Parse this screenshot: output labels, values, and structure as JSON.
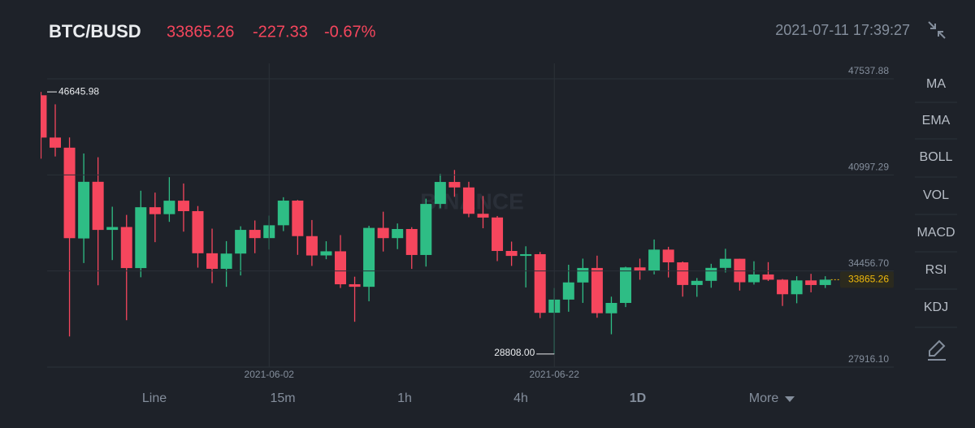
{
  "header": {
    "symbol": "BTC/BUSD",
    "price": "33865.26",
    "change": "-227.33",
    "change_percent": "-0.67%",
    "time": "2021-07-11 17:39:27"
  },
  "indicators": [
    "MA",
    "EMA",
    "BOLL",
    "VOL",
    "MACD",
    "RSI",
    "KDJ"
  ],
  "timeframes": [
    "Line",
    "15m",
    "1h",
    "4h",
    "1D",
    "More"
  ],
  "active_timeframe": 4,
  "watermark": "BINANCE",
  "chart_data": {
    "type": "candlestick",
    "categories": [
      null,
      null,
      null,
      null,
      null,
      null,
      null,
      null,
      null,
      null,
      null,
      null,
      null,
      null,
      null,
      null,
      "2021-06-02",
      null,
      null,
      null,
      null,
      null,
      null,
      null,
      null,
      null,
      null,
      null,
      null,
      null,
      null,
      null,
      null,
      null,
      null,
      null,
      "2021-06-22",
      null,
      null,
      null,
      null,
      null,
      null,
      null,
      null,
      null,
      null,
      null,
      null,
      null,
      null,
      null,
      null,
      null,
      null,
      null
    ],
    "open": [
      46415,
      43538,
      42849,
      36671,
      40527,
      37253,
      37449,
      34655,
      38796,
      38325,
      39241,
      38530,
      35662,
      34606,
      35642,
      37254,
      36694,
      37569,
      39246,
      36829,
      35516,
      35796,
      33556,
      33381,
      37389,
      36694,
      37313,
      35546,
      39020,
      40516,
      40143,
      38350,
      38099,
      35820,
      35484,
      35601,
      31614,
      32510,
      33675,
      34663,
      31577,
      32283,
      34702,
      34494,
      35911,
      35045,
      33503,
      33786,
      34669,
      35288,
      33690,
      34220,
      33863,
      32875,
      33815,
      33502
    ],
    "high": [
      46645.98,
      45800,
      43546,
      42451,
      42200,
      38831,
      38270,
      39920,
      39791,
      40841,
      40411,
      38877,
      37338,
      36488,
      37499,
      37894,
      38225,
      39476,
      39289,
      37925,
      36480,
      36900,
      34068,
      37534,
      38491,
      37690,
      37438,
      39380,
      41064,
      41330,
      40527,
      39560,
      38200,
      36457,
      36137,
      35750,
      33298,
      34881,
      35298,
      35500,
      32708,
      34749,
      35297,
      36600,
      36100,
      35100,
      33978,
      34945,
      35967,
      35293,
      35118,
      35059,
      33909,
      34100,
      34262,
      34100
    ],
    "low": [
      42100,
      42250,
      30000,
      35000,
      33488,
      35200,
      31111,
      34031,
      36419,
      37800,
      37134,
      34684,
      33632,
      33379,
      34153,
      35666,
      35920,
      37170,
      35555,
      34800,
      35258,
      33300,
      31000,
      32397,
      35782,
      35944,
      34600,
      34757,
      38730,
      39506,
      38116,
      37365,
      35129,
      34803,
      33337,
      31251,
      28808,
      31683,
      32286,
      31275,
      30151,
      32000,
      33862,
      34226,
      34017,
      32711,
      32700,
      33316,
      34357,
      33125,
      33532,
      33777,
      32077,
      32261,
      33004,
      33300
    ],
    "close": [
      43537,
      42849,
      36690,
      40526,
      37252,
      37449,
      34655,
      38796,
      38324,
      39241,
      38529,
      35664,
      34605,
      35641,
      37254,
      36694,
      37568,
      39246,
      36829,
      35513,
      35796,
      33552,
      33381,
      37389,
      36693,
      37313,
      35546,
      39020,
      40516,
      40144,
      38349,
      38092,
      35819,
      35483,
      35601,
      31608,
      32509,
      33679,
      34663,
      31584,
      32283,
      34700,
      34494,
      35911,
      35045,
      33504,
      33786,
      34669,
      35287,
      33690,
      34220,
      33863,
      32875,
      33815,
      33502,
      33865.26
    ],
    "up_color": "#2ebd85",
    "down_color": "#f6465d",
    "ylim": [
      27916.1,
      47537.88
    ],
    "yticks": [
      {
        "value": 27916.1,
        "label": "27916.10"
      },
      {
        "value": 34456.7,
        "label": "34456.70"
      },
      40997.29,
      47537.88
    ],
    "grid": true,
    "max_label": "46645.98",
    "min_label": "28808.00",
    "last_label": "33865.26"
  }
}
